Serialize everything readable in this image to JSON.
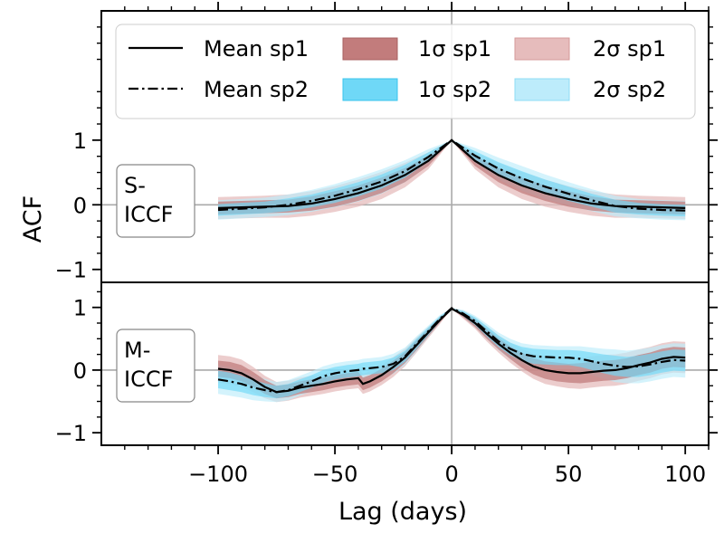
{
  "colors": {
    "sp1_1sigma": "#c27c7c",
    "sp1_2sigma": "#e6bcbc",
    "sp2_1sigma": "#6fd8f7",
    "sp2_2sigma": "#bdecfb",
    "line": "#000000",
    "zero_line": "#aaaaaa"
  },
  "chart_data": {
    "type": "line",
    "xlabel": "Lag (days)",
    "ylabel": "ACF",
    "xlim": [
      -150,
      110
    ],
    "xticks": [
      -100,
      -50,
      0,
      50,
      100
    ],
    "xtick_labels": [
      "−100",
      "−50",
      "0",
      "50",
      "100"
    ],
    "legend": {
      "placement": "top",
      "entries": [
        {
          "key": "mean_sp1",
          "label": "Mean sp1"
        },
        {
          "key": "mean_sp2",
          "label": "Mean sp2"
        },
        {
          "key": "s1_sp1",
          "label": "1σ sp1"
        },
        {
          "key": "s1_sp2",
          "label": "1σ sp2"
        },
        {
          "key": "s2_sp1",
          "label": "2σ sp1"
        },
        {
          "key": "s2_sp2",
          "label": "2σ sp2"
        }
      ]
    },
    "panels": [
      {
        "id": "s-iccf",
        "label_lines": [
          "S-",
          "ICCF"
        ],
        "ylim": [
          -1.2,
          3.0
        ],
        "yticks": [
          -1,
          0,
          1
        ],
        "ytick_labels": [
          "−1",
          "0",
          "1"
        ],
        "x": [
          -100,
          -90,
          -80,
          -70,
          -60,
          -50,
          -40,
          -30,
          -20,
          -10,
          0,
          10,
          20,
          30,
          40,
          50,
          60,
          70,
          80,
          90,
          100
        ],
        "mean_sp1": [
          -0.05,
          -0.04,
          -0.03,
          -0.02,
          0.02,
          0.09,
          0.18,
          0.3,
          0.46,
          0.68,
          1.0,
          0.68,
          0.46,
          0.3,
          0.18,
          0.09,
          0.02,
          -0.02,
          -0.03,
          -0.04,
          -0.05
        ],
        "mean_sp2": [
          -0.08,
          -0.06,
          -0.04,
          0.0,
          0.06,
          0.14,
          0.24,
          0.36,
          0.52,
          0.74,
          1.0,
          0.76,
          0.56,
          0.41,
          0.28,
          0.17,
          0.07,
          -0.02,
          -0.06,
          -0.08,
          -0.09
        ],
        "s1_sp1_halfwidth": [
          0.1,
          0.1,
          0.1,
          0.1,
          0.11,
          0.12,
          0.12,
          0.12,
          0.11,
          0.08,
          0.0,
          0.08,
          0.11,
          0.12,
          0.12,
          0.12,
          0.11,
          0.1,
          0.1,
          0.1,
          0.1
        ],
        "s2_sp1_halfwidth": [
          0.17,
          0.17,
          0.17,
          0.18,
          0.19,
          0.2,
          0.21,
          0.21,
          0.19,
          0.13,
          0.0,
          0.13,
          0.19,
          0.21,
          0.21,
          0.2,
          0.19,
          0.18,
          0.17,
          0.17,
          0.17
        ],
        "s1_sp2_halfwidth": [
          0.09,
          0.09,
          0.09,
          0.1,
          0.1,
          0.11,
          0.11,
          0.11,
          0.1,
          0.07,
          0.0,
          0.07,
          0.1,
          0.11,
          0.11,
          0.11,
          0.1,
          0.1,
          0.09,
          0.09,
          0.09
        ],
        "s2_sp2_halfwidth": [
          0.15,
          0.15,
          0.15,
          0.16,
          0.17,
          0.18,
          0.19,
          0.19,
          0.17,
          0.12,
          0.0,
          0.12,
          0.17,
          0.19,
          0.19,
          0.18,
          0.17,
          0.16,
          0.15,
          0.15,
          0.15
        ]
      },
      {
        "id": "m-iccf",
        "label_lines": [
          "M-",
          "ICCF"
        ],
        "ylim": [
          -1.2,
          1.4
        ],
        "yticks": [
          -1,
          0,
          1
        ],
        "ytick_labels": [
          "−1",
          "0",
          "1"
        ],
        "x": [
          -100,
          -95,
          -90,
          -85,
          -80,
          -75,
          -70,
          -65,
          -60,
          -55,
          -50,
          -45,
          -40,
          -38,
          -35,
          -30,
          -25,
          -20,
          -15,
          -10,
          -5,
          0,
          5,
          10,
          15,
          20,
          25,
          30,
          35,
          40,
          45,
          50,
          55,
          60,
          65,
          70,
          75,
          80,
          85,
          90,
          95,
          100
        ],
        "mean_sp1": [
          0.02,
          0.0,
          -0.05,
          -0.15,
          -0.27,
          -0.35,
          -0.33,
          -0.28,
          -0.25,
          -0.22,
          -0.18,
          -0.15,
          -0.13,
          -0.22,
          -0.18,
          -0.08,
          0.05,
          0.2,
          0.4,
          0.6,
          0.8,
          0.98,
          0.88,
          0.75,
          0.58,
          0.42,
          0.28,
          0.16,
          0.06,
          0.0,
          -0.03,
          -0.05,
          -0.05,
          -0.03,
          -0.01,
          0.0,
          0.03,
          0.08,
          0.12,
          0.18,
          0.21,
          0.2
        ],
        "mean_sp2": [
          -0.15,
          -0.18,
          -0.22,
          -0.28,
          -0.32,
          -0.35,
          -0.32,
          -0.25,
          -0.18,
          -0.1,
          -0.05,
          -0.02,
          0.0,
          0.02,
          0.03,
          0.05,
          0.1,
          0.22,
          0.42,
          0.62,
          0.82,
          0.99,
          0.9,
          0.78,
          0.62,
          0.46,
          0.34,
          0.26,
          0.22,
          0.21,
          0.2,
          0.2,
          0.18,
          0.14,
          0.1,
          0.07,
          0.05,
          0.06,
          0.09,
          0.13,
          0.16,
          0.15
        ],
        "s1_sp1_halfwidth": [
          0.13,
          0.13,
          0.13,
          0.12,
          0.11,
          0.1,
          0.1,
          0.1,
          0.1,
          0.1,
          0.1,
          0.1,
          0.1,
          0.1,
          0.1,
          0.1,
          0.1,
          0.09,
          0.08,
          0.06,
          0.04,
          0.0,
          0.04,
          0.06,
          0.08,
          0.09,
          0.1,
          0.12,
          0.13,
          0.14,
          0.15,
          0.15,
          0.16,
          0.16,
          0.16,
          0.16,
          0.16,
          0.16,
          0.16,
          0.16,
          0.16,
          0.16
        ],
        "s2_sp1_halfwidth": [
          0.22,
          0.22,
          0.22,
          0.2,
          0.18,
          0.16,
          0.16,
          0.16,
          0.16,
          0.16,
          0.16,
          0.16,
          0.16,
          0.16,
          0.16,
          0.16,
          0.16,
          0.14,
          0.12,
          0.09,
          0.06,
          0.0,
          0.06,
          0.09,
          0.12,
          0.14,
          0.16,
          0.18,
          0.2,
          0.22,
          0.23,
          0.24,
          0.25,
          0.25,
          0.25,
          0.25,
          0.25,
          0.25,
          0.25,
          0.25,
          0.25,
          0.25
        ],
        "s1_sp2_halfwidth": [
          0.14,
          0.14,
          0.13,
          0.12,
          0.11,
          0.1,
          0.1,
          0.1,
          0.1,
          0.1,
          0.1,
          0.1,
          0.1,
          0.1,
          0.1,
          0.1,
          0.1,
          0.09,
          0.08,
          0.06,
          0.04,
          0.0,
          0.04,
          0.06,
          0.08,
          0.09,
          0.1,
          0.11,
          0.12,
          0.12,
          0.12,
          0.12,
          0.13,
          0.14,
          0.15,
          0.16,
          0.16,
          0.17,
          0.17,
          0.17,
          0.17,
          0.17
        ],
        "s2_sp2_halfwidth": [
          0.23,
          0.23,
          0.22,
          0.2,
          0.18,
          0.16,
          0.16,
          0.16,
          0.16,
          0.16,
          0.16,
          0.16,
          0.16,
          0.16,
          0.16,
          0.16,
          0.16,
          0.14,
          0.12,
          0.09,
          0.06,
          0.0,
          0.06,
          0.09,
          0.12,
          0.14,
          0.16,
          0.17,
          0.18,
          0.18,
          0.18,
          0.18,
          0.2,
          0.22,
          0.24,
          0.26,
          0.26,
          0.27,
          0.27,
          0.27,
          0.27,
          0.27
        ]
      }
    ]
  }
}
